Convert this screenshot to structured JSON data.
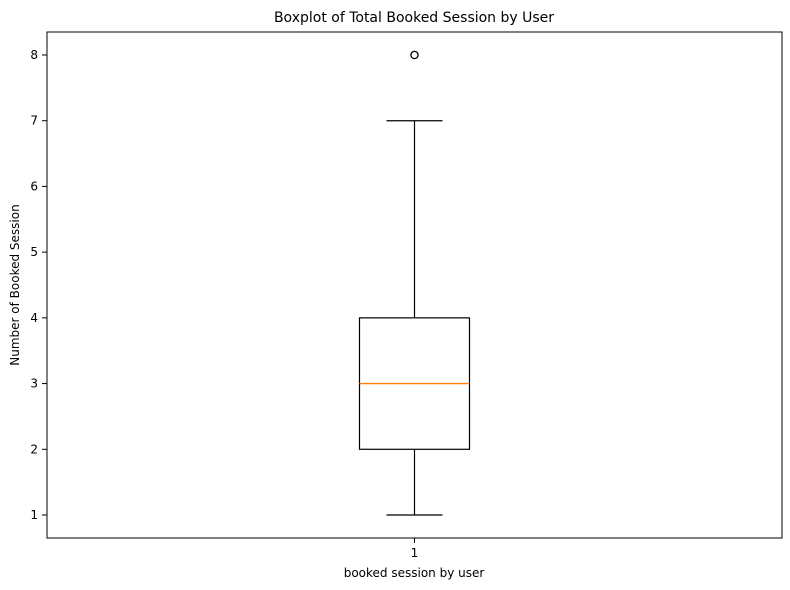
{
  "chart_data": {
    "type": "box",
    "title": "Boxplot of Total Booked Session by User",
    "xlabel": "booked session by user",
    "ylabel": "Number of Booked Session",
    "categories": [
      "1"
    ],
    "ylim": [
      0.65,
      8.35
    ],
    "yticks": [
      1,
      2,
      3,
      4,
      5,
      6,
      7,
      8
    ],
    "grid": false,
    "boxes": [
      {
        "category": "1",
        "whisker_low": 1,
        "q1": 2,
        "median": 3,
        "q3": 4,
        "whisker_high": 7,
        "outliers": [
          8
        ]
      }
    ],
    "colors": {
      "box": "#000000",
      "median": "#ff7f0e",
      "outlier": "#000000"
    }
  }
}
